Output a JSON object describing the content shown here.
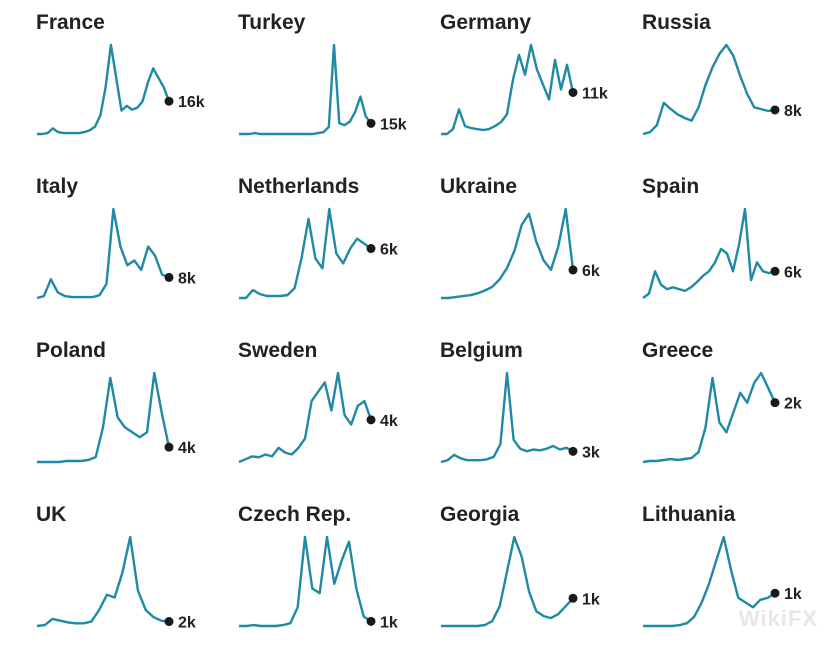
{
  "colors": {
    "line": "#1f8aa5",
    "dot": "#1a1a1a",
    "label": "#222222"
  },
  "watermark": "WikiFX",
  "chart_data": [
    {
      "type": "line",
      "title": "France",
      "end_label": "16k",
      "values": [
        0,
        0,
        1,
        6,
        2,
        1,
        1,
        1,
        1,
        2,
        4,
        8,
        20,
        50,
        95,
        60,
        25,
        30,
        26,
        28,
        35,
        55,
        70,
        60,
        50,
        35
      ]
    },
    {
      "type": "line",
      "title": "Turkey",
      "end_label": "15k",
      "values": [
        0,
        0,
        0,
        1,
        0,
        0,
        0,
        0,
        0,
        0,
        0,
        0,
        0,
        0,
        0,
        1,
        2,
        8,
        100,
        12,
        10,
        14,
        25,
        42,
        20,
        12
      ]
    },
    {
      "type": "line",
      "title": "Germany",
      "end_label": "11k",
      "values": [
        0,
        0,
        5,
        25,
        8,
        6,
        5,
        4,
        5,
        8,
        12,
        20,
        55,
        80,
        60,
        90,
        65,
        50,
        35,
        75,
        45,
        70,
        42
      ]
    },
    {
      "type": "line",
      "title": "Russia",
      "end_label": "8k",
      "values": [
        0,
        2,
        10,
        35,
        28,
        22,
        18,
        15,
        30,
        55,
        75,
        90,
        100,
        88,
        65,
        45,
        30,
        28,
        26,
        27
      ]
    },
    {
      "type": "line",
      "title": "Italy",
      "end_label": "8k",
      "values": [
        0,
        2,
        20,
        6,
        2,
        1,
        1,
        1,
        1,
        3,
        15,
        95,
        55,
        35,
        40,
        30,
        55,
        45,
        25,
        22
      ]
    },
    {
      "type": "line",
      "title": "Netherlands",
      "end_label": "6k",
      "values": [
        0,
        0,
        8,
        4,
        2,
        2,
        2,
        3,
        10,
        40,
        80,
        40,
        30,
        90,
        45,
        35,
        50,
        60,
        55,
        50
      ]
    },
    {
      "type": "line",
      "title": "Ukraine",
      "end_label": "6k",
      "values": [
        0,
        0,
        1,
        2,
        3,
        5,
        8,
        12,
        20,
        32,
        50,
        78,
        90,
        60,
        40,
        30,
        55,
        95,
        30
      ]
    },
    {
      "type": "line",
      "title": "Spain",
      "end_label": "6k",
      "values": [
        0,
        5,
        30,
        15,
        10,
        12,
        10,
        8,
        12,
        18,
        25,
        30,
        40,
        55,
        50,
        30,
        60,
        100,
        20,
        40,
        30,
        28,
        30
      ]
    },
    {
      "type": "line",
      "title": "Poland",
      "end_label": "4k",
      "values": [
        0,
        0,
        0,
        0,
        1,
        1,
        1,
        2,
        5,
        35,
        85,
        45,
        35,
        30,
        25,
        30,
        90,
        50,
        15
      ]
    },
    {
      "type": "line",
      "title": "Sweden",
      "end_label": "4k",
      "values": [
        0,
        3,
        6,
        5,
        8,
        6,
        15,
        10,
        8,
        15,
        25,
        65,
        75,
        85,
        55,
        95,
        50,
        40,
        60,
        65,
        45
      ]
    },
    {
      "type": "line",
      "title": "Belgium",
      "end_label": "3k",
      "values": [
        0,
        2,
        8,
        4,
        2,
        2,
        2,
        3,
        6,
        20,
        100,
        25,
        15,
        12,
        14,
        13,
        15,
        18,
        14,
        16,
        12
      ]
    },
    {
      "type": "line",
      "title": "Greece",
      "end_label": "2k",
      "values": [
        0,
        1,
        1,
        2,
        3,
        2,
        3,
        4,
        10,
        35,
        85,
        40,
        30,
        50,
        70,
        60,
        80,
        90,
        75,
        60
      ]
    },
    {
      "type": "line",
      "title": "UK",
      "end_label": "2k",
      "values": [
        0,
        1,
        8,
        6,
        4,
        3,
        3,
        5,
        18,
        35,
        32,
        60,
        100,
        40,
        18,
        10,
        6,
        5
      ]
    },
    {
      "type": "line",
      "title": "Czech Rep.",
      "end_label": "1k",
      "values": [
        0,
        0,
        1,
        0,
        0,
        0,
        1,
        3,
        20,
        95,
        40,
        35,
        95,
        45,
        70,
        90,
        40,
        10,
        5
      ]
    },
    {
      "type": "line",
      "title": "Georgia",
      "end_label": "1k",
      "values": [
        0,
        0,
        0,
        0,
        0,
        0,
        1,
        5,
        20,
        55,
        90,
        70,
        35,
        15,
        10,
        8,
        12,
        20,
        28
      ]
    },
    {
      "type": "line",
      "title": "Lithuania",
      "end_label": "1k",
      "values": [
        0,
        0,
        0,
        0,
        0,
        1,
        3,
        10,
        25,
        45,
        70,
        95,
        60,
        30,
        25,
        20,
        28,
        30,
        35
      ]
    }
  ]
}
